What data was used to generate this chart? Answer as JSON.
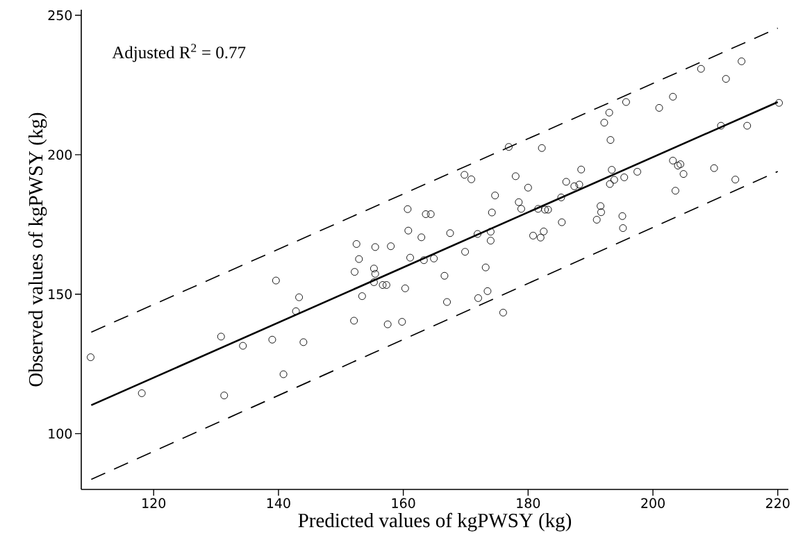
{
  "chart_data": {
    "type": "scatter",
    "xlabel": "Predicted values of kgPWSY (kg)",
    "ylabel": "Observed values of kgPWSY (kg)",
    "annotations": [
      "Adjusted R$^{2}$ = 0.77"
    ],
    "xlim": [
      108.4,
      221.7
    ],
    "ylim": [
      80,
      252
    ],
    "xticks": [
      120,
      140,
      160,
      180,
      200,
      220
    ],
    "yticks": [
      100,
      150,
      200,
      250
    ],
    "grid": false,
    "series": [
      {
        "marker": "circle",
        "color": "#000000",
        "x": [
          109.9,
          118.1,
          130.8,
          131.3,
          134.3,
          139.0,
          139.6,
          140.8,
          142.8,
          143.3,
          144.0,
          152.1,
          152.2,
          152.5,
          152.9,
          153.4,
          155.3,
          155.5,
          155.3,
          155.5,
          156.7,
          157.3,
          157.5,
          158.0,
          159.8,
          160.3,
          160.7,
          160.8,
          161.1,
          162.9,
          163.3,
          163.6,
          164.4,
          164.9,
          166.6,
          167.0,
          167.5,
          169.8,
          169.9,
          170.9,
          171.9,
          172.0,
          173.2,
          173.5,
          174.0,
          174.0,
          174.2,
          174.7,
          176.0,
          176.9,
          178.0,
          178.5,
          178.9,
          180.0,
          180.8,
          181.6,
          182.0,
          182.2,
          182.5,
          182.7,
          183.2,
          185.3,
          185.4,
          186.1,
          187.4,
          188.2,
          188.5,
          191.0,
          191.6,
          191.7,
          192.2,
          193.0,
          193.2,
          193.4,
          193.1,
          193.8,
          195.4,
          195.1,
          195.2,
          195.7,
          197.5,
          201.0,
          203.2,
          203.2,
          203.6,
          204.0,
          204.4,
          204.9,
          207.7,
          209.8,
          210.9,
          211.7,
          213.2,
          214.2,
          215.1,
          220.2
        ],
        "values": [
          127.4,
          114.5,
          134.8,
          113.7,
          131.5,
          133.7,
          154.9,
          121.3,
          143.9,
          148.9,
          132.8,
          140.5,
          158.0,
          168.0,
          162.6,
          149.3,
          159.2,
          157.3,
          154.3,
          166.9,
          153.3,
          153.3,
          139.2,
          167.2,
          140.1,
          152.1,
          180.5,
          172.8,
          163.1,
          170.4,
          162.2,
          178.7,
          178.7,
          162.8,
          156.6,
          147.2,
          171.9,
          192.8,
          165.2,
          191.2,
          171.6,
          148.6,
          159.6,
          151.1,
          172.4,
          169.2,
          179.3,
          185.4,
          143.4,
          202.8,
          192.3,
          183.0,
          180.6,
          188.2,
          171.0,
          180.6,
          170.3,
          202.4,
          172.5,
          180.3,
          180.3,
          184.7,
          175.8,
          190.3,
          188.7,
          189.3,
          194.7,
          176.7,
          181.6,
          179.4,
          211.5,
          215.1,
          205.3,
          194.6,
          189.5,
          191.0,
          191.9,
          178.0,
          173.7,
          218.9,
          193.9,
          216.8,
          220.8,
          197.9,
          187.1,
          196.1,
          196.6,
          193.1,
          230.8,
          195.2,
          210.4,
          227.2,
          191.1,
          233.5,
          210.4,
          218.6
        ]
      },
      {
        "type": "line",
        "line_style": "solid",
        "color": "#000000",
        "x": [
          110,
          220
        ],
        "values": [
          110.2,
          218.9
        ]
      },
      {
        "type": "line",
        "line_style": "dashed",
        "color": "#000000",
        "x": [
          110,
          220
        ],
        "values": [
          136.4,
          245.4
        ]
      },
      {
        "type": "line",
        "line_style": "dashed",
        "color": "#000000",
        "x": [
          110,
          220
        ],
        "values": [
          83.6,
          194.0
        ]
      }
    ]
  }
}
